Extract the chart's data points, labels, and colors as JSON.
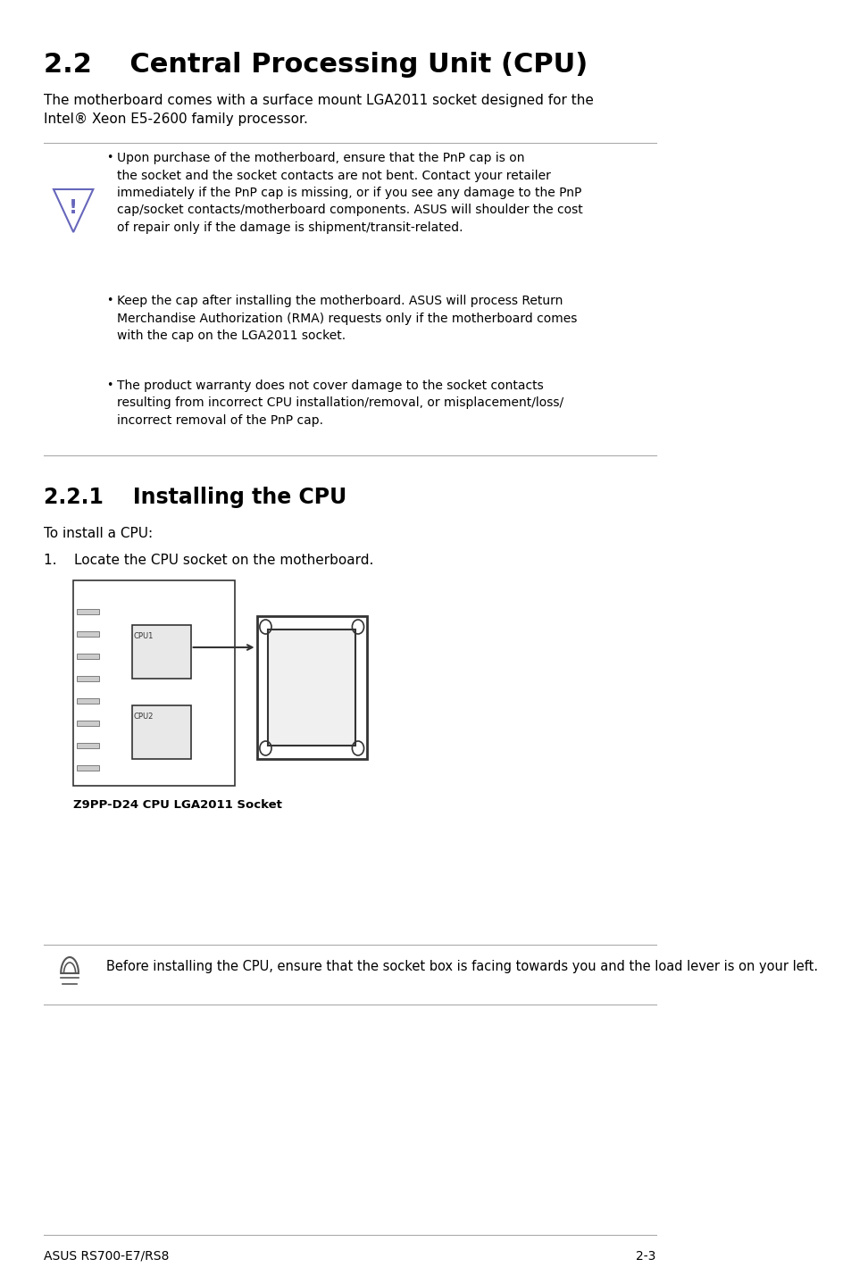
{
  "title": "2.2    Central Processing Unit (CPU)",
  "intro_text": "The motherboard comes with a surface mount LGA2011 socket designed for the\nIntel® Xeon E5-2600 family processor.",
  "warning_bullets": [
    "Upon purchase of the motherboard, ensure that the PnP cap is on the socket and the socket contacts are not bent. Contact your retailer immediately if the PnP cap is missing, or if you see any damage to the PnP cap/socket contacts/motherboard components. ASUS will shoulder the cost of repair only if the damage is shipment/transit-related.",
    "Keep the cap after installing the motherboard. ASUS will process Return Merchandise Authorization (RMA) requests only if the motherboard comes with the cap on the LGA2011 socket.",
    "The product warranty does not cover damage to the socket contacts resulting from incorrect CPU installation/removal, or misplacement/loss/ incorrect removal of the PnP cap."
  ],
  "section_title": "2.2.1    Installing the CPU",
  "install_intro": "To install a CPU:",
  "step1": "1.    Locate the CPU socket on the motherboard.",
  "image_caption": "Z9PP-D24 CPU LGA2011 Socket",
  "note_text": "Before installing the CPU, ensure that the socket box is facing towards you and the load lever is on your left.",
  "footer_left": "ASUS RS700-E7/RS8",
  "footer_right": "2-3",
  "bg_color": "#ffffff",
  "text_color": "#000000",
  "line_color": "#aaaaaa",
  "warning_triangle_color": "#7070cc",
  "note_icon_color": "#333333"
}
